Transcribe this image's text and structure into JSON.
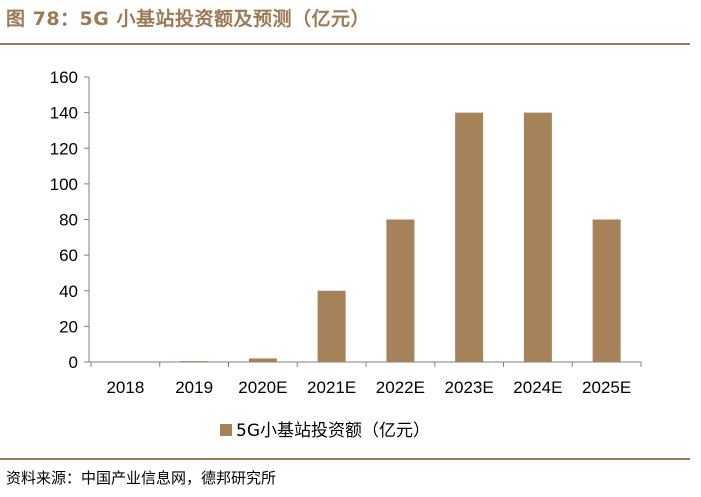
{
  "title": "图 78：5G 小基站投资额及预测（亿元）",
  "source": "资料来源：中国产业信息网，德邦研究所",
  "colors": {
    "accent": "#9C7A55",
    "bar": "#A6825A",
    "axis": "#808080"
  },
  "chart_data": {
    "type": "bar",
    "title": "",
    "xlabel": "",
    "ylabel": "",
    "categories": [
      "2018",
      "2019",
      "2020E",
      "2021E",
      "2022E",
      "2023E",
      "2024E",
      "2025E"
    ],
    "series": [
      {
        "name": "5G小基站投资额（亿元）",
        "values": [
          0,
          0.5,
          2,
          40,
          80,
          140,
          140,
          80
        ]
      }
    ],
    "ylim": [
      0,
      160
    ],
    "yticks": [
      0,
      20,
      40,
      60,
      80,
      100,
      120,
      140,
      160
    ],
    "grid": false,
    "legend": "bottom-center"
  }
}
